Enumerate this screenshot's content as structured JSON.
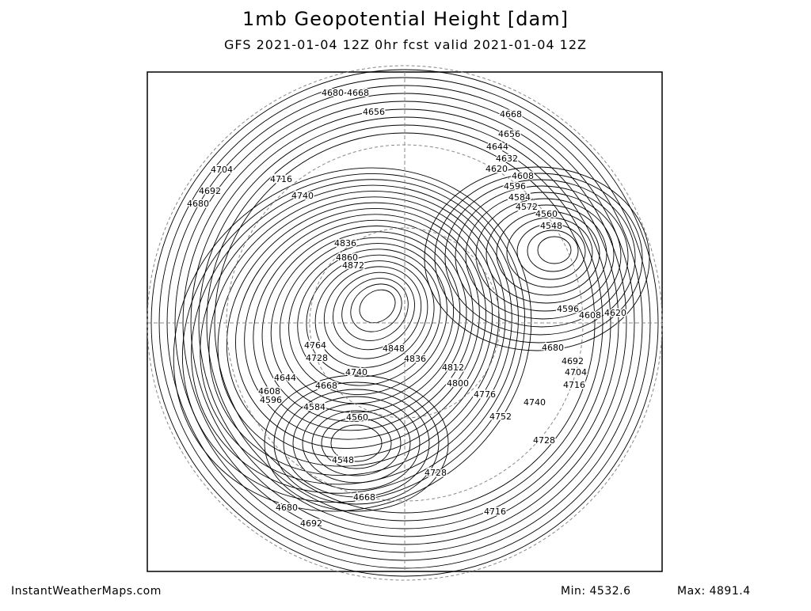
{
  "header": {
    "title": "1mb Geopotential Height [dam]",
    "subtitle": "GFS 2021-01-04 12Z 0hr fcst valid 2021-01-04 12Z"
  },
  "footer": {
    "site": "InstantWeatherMaps.com",
    "min": "Min: 4532.6",
    "max": "Max: 4891.4"
  },
  "contour_labels": [
    "4680",
    "4668",
    "4656",
    "4668",
    "4656",
    "4644",
    "4632",
    "4620",
    "4608",
    "4596",
    "4584",
    "4572",
    "4560",
    "4548",
    "4704",
    "4692",
    "4680",
    "4716",
    "4740",
    "4836",
    "4860",
    "4872",
    "4764",
    "4728",
    "4848",
    "4836",
    "4812",
    "4800",
    "4776",
    "4740",
    "4668",
    "4644",
    "4608",
    "4596",
    "4584",
    "4560",
    "4548",
    "4668",
    "4680",
    "4692",
    "4728",
    "4716",
    "4728",
    "4752",
    "4740",
    "4716",
    "4704",
    "4692",
    "4680",
    "4596",
    "4620",
    "4608"
  ]
}
